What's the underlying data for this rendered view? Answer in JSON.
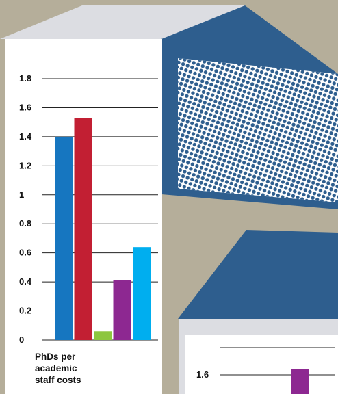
{
  "chart_data": [
    {
      "type": "bar",
      "categories": [
        "",
        "",
        "",
        "",
        ""
      ],
      "values": [
        1.4,
        1.53,
        0.06,
        0.41,
        0.64
      ],
      "colors": [
        "#1676c0",
        "#c21f33",
        "#8dc63f",
        "#8d2891",
        "#00aeef"
      ],
      "ylim": [
        0,
        1.8
      ],
      "y_ticks": [
        "0",
        "0.2",
        "0.4",
        "0.6",
        "0.8",
        "1",
        "1.2",
        "1.4",
        "1.6",
        "1.8"
      ],
      "y_tick_values": [
        0,
        0.2,
        0.4,
        0.6,
        0.8,
        1,
        1.2,
        1.4,
        1.6,
        1.8
      ],
      "caption": [
        "PhDs per",
        "academic",
        "staff costs"
      ],
      "grid": true
    },
    {
      "type": "bar",
      "partial": true,
      "y_ticks": [
        "1.6"
      ],
      "visible_bar_color": "#8d2891",
      "grid": true
    }
  ],
  "colors": {
    "background": "#b5ae9a",
    "box_face": "#ffffff",
    "box_side": "#2e5e8e",
    "box_top": "#dcdde2",
    "halftone": "#2e5e8e"
  }
}
